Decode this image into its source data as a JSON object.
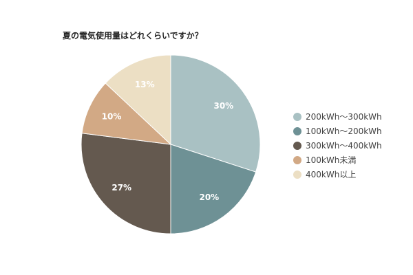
{
  "chart_data": {
    "type": "pie",
    "title": "夏の電気使用量はどれくらいですか？",
    "slices": [
      {
        "label": "200kWh～300kWh",
        "value": 30,
        "display": "30%",
        "color": "#a9c1c3"
      },
      {
        "label": "100kWh～200kWh",
        "value": 20,
        "display": "20%",
        "color": "#6e9195"
      },
      {
        "label": "300kWh～400kWh",
        "value": 27,
        "display": "27%",
        "color": "#64594f"
      },
      {
        "label": "100kWh未満",
        "value": 10,
        "display": "10%",
        "color": "#d2a985"
      },
      {
        "label": "400kWh以上",
        "value": 13,
        "display": "13%",
        "color": "#ecdfc4"
      }
    ],
    "legend_position": "right"
  }
}
